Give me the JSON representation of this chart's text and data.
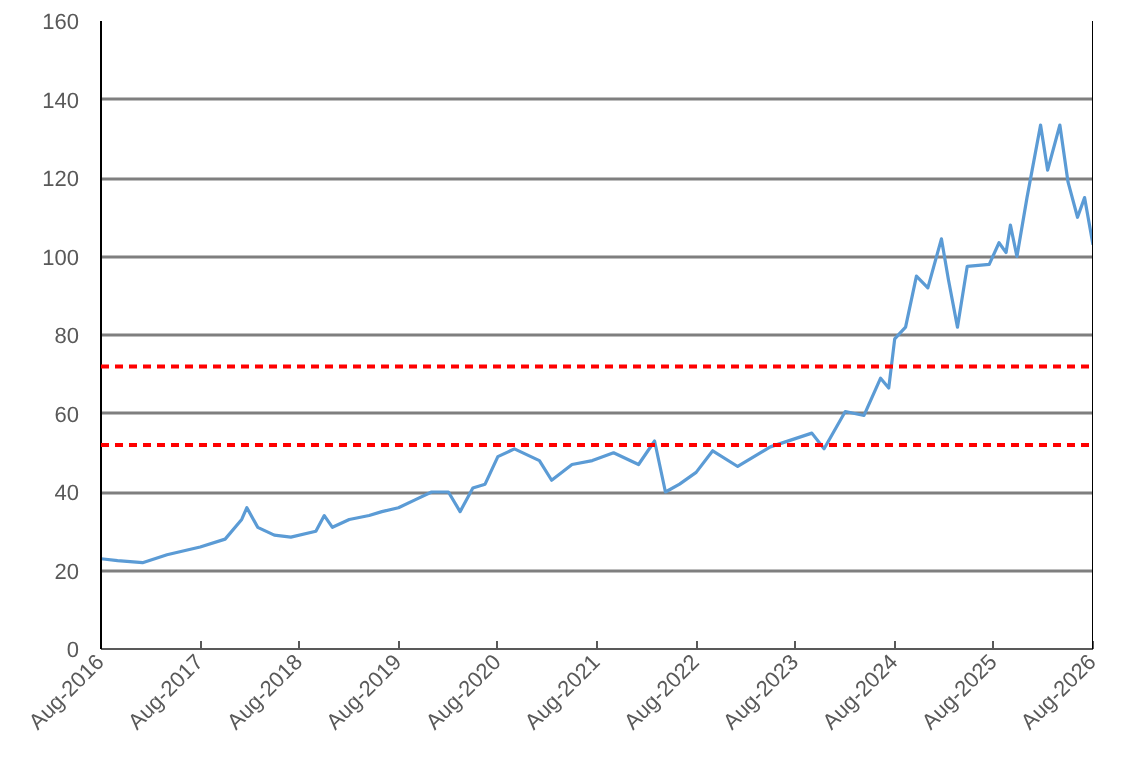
{
  "chart_data": {
    "type": "line",
    "line_style": "solid",
    "marker": "none",
    "grid": "y",
    "x": [
      "2016-08-01",
      "2016-10-01",
      "2017-01-01",
      "2017-04-01",
      "2017-08-01",
      "2017-11-01",
      "2018-01-01",
      "2018-01-20",
      "2018-03-01",
      "2018-05-01",
      "2018-07-01",
      "2018-10-01",
      "2018-11-01",
      "2018-12-01",
      "2019-02-01",
      "2019-04-15",
      "2019-06-01",
      "2019-08-01",
      "2019-10-01",
      "2019-12-01",
      "2020-02-01",
      "2020-03-15",
      "2020-05-01",
      "2020-06-15",
      "2020-08-01",
      "2020-10-01",
      "2021-01-01",
      "2021-02-15",
      "2021-05-01",
      "2021-07-15",
      "2021-10-01",
      "2022-01-01",
      "2022-03-01",
      "2022-04-10",
      "2022-06-01",
      "2022-08-01",
      "2022-10-01",
      "2023-01-01",
      "2023-05-01",
      "2023-10-01",
      "2023-11-15",
      "2024-02-01",
      "2024-04-10",
      "2024-06-10",
      "2024-07-10",
      "2024-08-01",
      "2024-09-10",
      "2024-10-20",
      "2024-12-01",
      "2025-01-20",
      "2025-02-15",
      "2025-03-20",
      "2025-04-25",
      "2025-07-15",
      "2025-08-20",
      "2025-09-15",
      "2025-10-01",
      "2025-10-25",
      "2025-12-01",
      "2026-01-20",
      "2026-02-15",
      "2026-04-01",
      "2026-05-01",
      "2026-06-05",
      "2026-07-01",
      "2026-08-01"
    ],
    "series": [
      {
        "color": "#5b9bd5",
        "values": [
          23,
          22.5,
          22,
          24,
          26,
          28,
          33,
          36,
          31,
          29,
          28.5,
          30,
          34,
          31,
          33,
          34,
          35,
          36,
          38,
          40,
          40,
          35,
          41,
          42,
          49,
          51,
          48,
          43,
          47,
          48,
          50,
          47,
          53,
          40,
          42,
          45,
          50.5,
          46.5,
          51.5,
          55,
          51,
          60.5,
          59.5,
          69,
          66.5,
          79,
          82,
          95,
          92,
          104.5,
          94,
          82,
          97.5,
          98,
          103.5,
          101,
          108,
          100,
          115,
          133.5,
          122,
          133.5,
          119,
          110,
          115,
          103
        ]
      }
    ],
    "xlim": [
      "2016-08-01",
      "2026-08-01"
    ],
    "xticks": [
      {
        "value": "2016-08-01",
        "label": "Aug-2016"
      },
      {
        "value": "2017-08-01",
        "label": "Aug-2017"
      },
      {
        "value": "2018-08-01",
        "label": "Aug-2018"
      },
      {
        "value": "2019-08-01",
        "label": "Aug-2019"
      },
      {
        "value": "2020-08-01",
        "label": "Aug-2020"
      },
      {
        "value": "2021-08-01",
        "label": "Aug-2021"
      },
      {
        "value": "2022-08-01",
        "label": "Aug-2022"
      },
      {
        "value": "2023-08-01",
        "label": "Aug-2023"
      },
      {
        "value": "2024-08-01",
        "label": "Aug-2024"
      },
      {
        "value": "2025-08-01",
        "label": "Aug-2025"
      },
      {
        "value": "2026-08-01",
        "label": "Aug-2026"
      }
    ],
    "ylim": [
      0,
      160
    ],
    "yticks": [
      0,
      20,
      40,
      60,
      80,
      100,
      120,
      140,
      160
    ],
    "ref_lines": [
      {
        "axis": "y",
        "value": 72,
        "color": "#ff0000",
        "line_style": "dashed"
      },
      {
        "axis": "y",
        "value": 52,
        "color": "#ff0000",
        "line_style": "dashed"
      }
    ]
  }
}
